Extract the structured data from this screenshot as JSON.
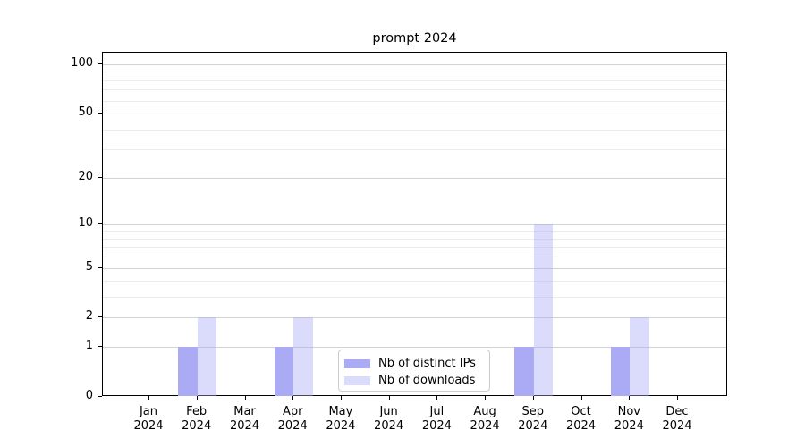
{
  "chart_data": {
    "type": "bar",
    "title": "prompt 2024",
    "year": "2024",
    "categories": [
      "Jan",
      "Feb",
      "Mar",
      "Apr",
      "May",
      "Jun",
      "Jul",
      "Aug",
      "Sep",
      "Oct",
      "Nov",
      "Dec"
    ],
    "series": [
      {
        "name": "Nb of distinct IPs",
        "color": "#aaaaf5",
        "opacity": 1.0,
        "values": [
          0,
          1,
          0,
          1,
          0,
          0,
          0,
          0,
          1,
          0,
          1,
          0
        ]
      },
      {
        "name": "Nb of downloads",
        "color": "#aaaaf5",
        "opacity": 0.42,
        "values": [
          0,
          2,
          0,
          2,
          0,
          0,
          0,
          0,
          10,
          0,
          2,
          0
        ]
      }
    ],
    "yaxis": {
      "scale": "log1p",
      "tick_values": [
        0,
        1,
        2,
        5,
        10,
        20,
        50,
        100
      ],
      "tick_labels": [
        "0",
        "1",
        "2",
        "5",
        "10",
        "20",
        "50",
        "100"
      ],
      "minor_gridlines": [
        3,
        4,
        6,
        7,
        8,
        9,
        30,
        40,
        60,
        70,
        80,
        90
      ],
      "ylim": [
        0,
        117
      ]
    },
    "xlabel": "",
    "ylabel": "",
    "grid": "on",
    "legend_position": "lower center (inside plot)",
    "colors": {
      "major_grid": "#d3d3d3",
      "minor_grid": "#ececec",
      "spine": "#000000",
      "background": "#ffffff"
    }
  }
}
